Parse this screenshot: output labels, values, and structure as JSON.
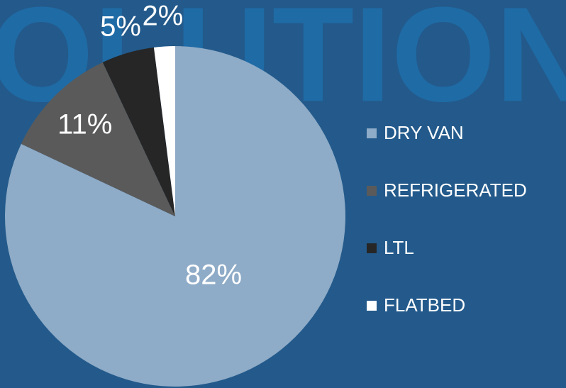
{
  "chart_data": {
    "type": "pie",
    "background_text": "OLUTION",
    "categories": [
      "DRY VAN",
      "REFRIGERATED",
      "LTL",
      "FLATBED"
    ],
    "values": [
      82,
      11,
      5,
      2
    ],
    "value_labels": [
      "82%",
      "11%",
      "5%",
      "2%"
    ],
    "colors": [
      "#8eabc7",
      "#5a5a5a",
      "#262626",
      "#ffffff"
    ],
    "legend": "right"
  }
}
